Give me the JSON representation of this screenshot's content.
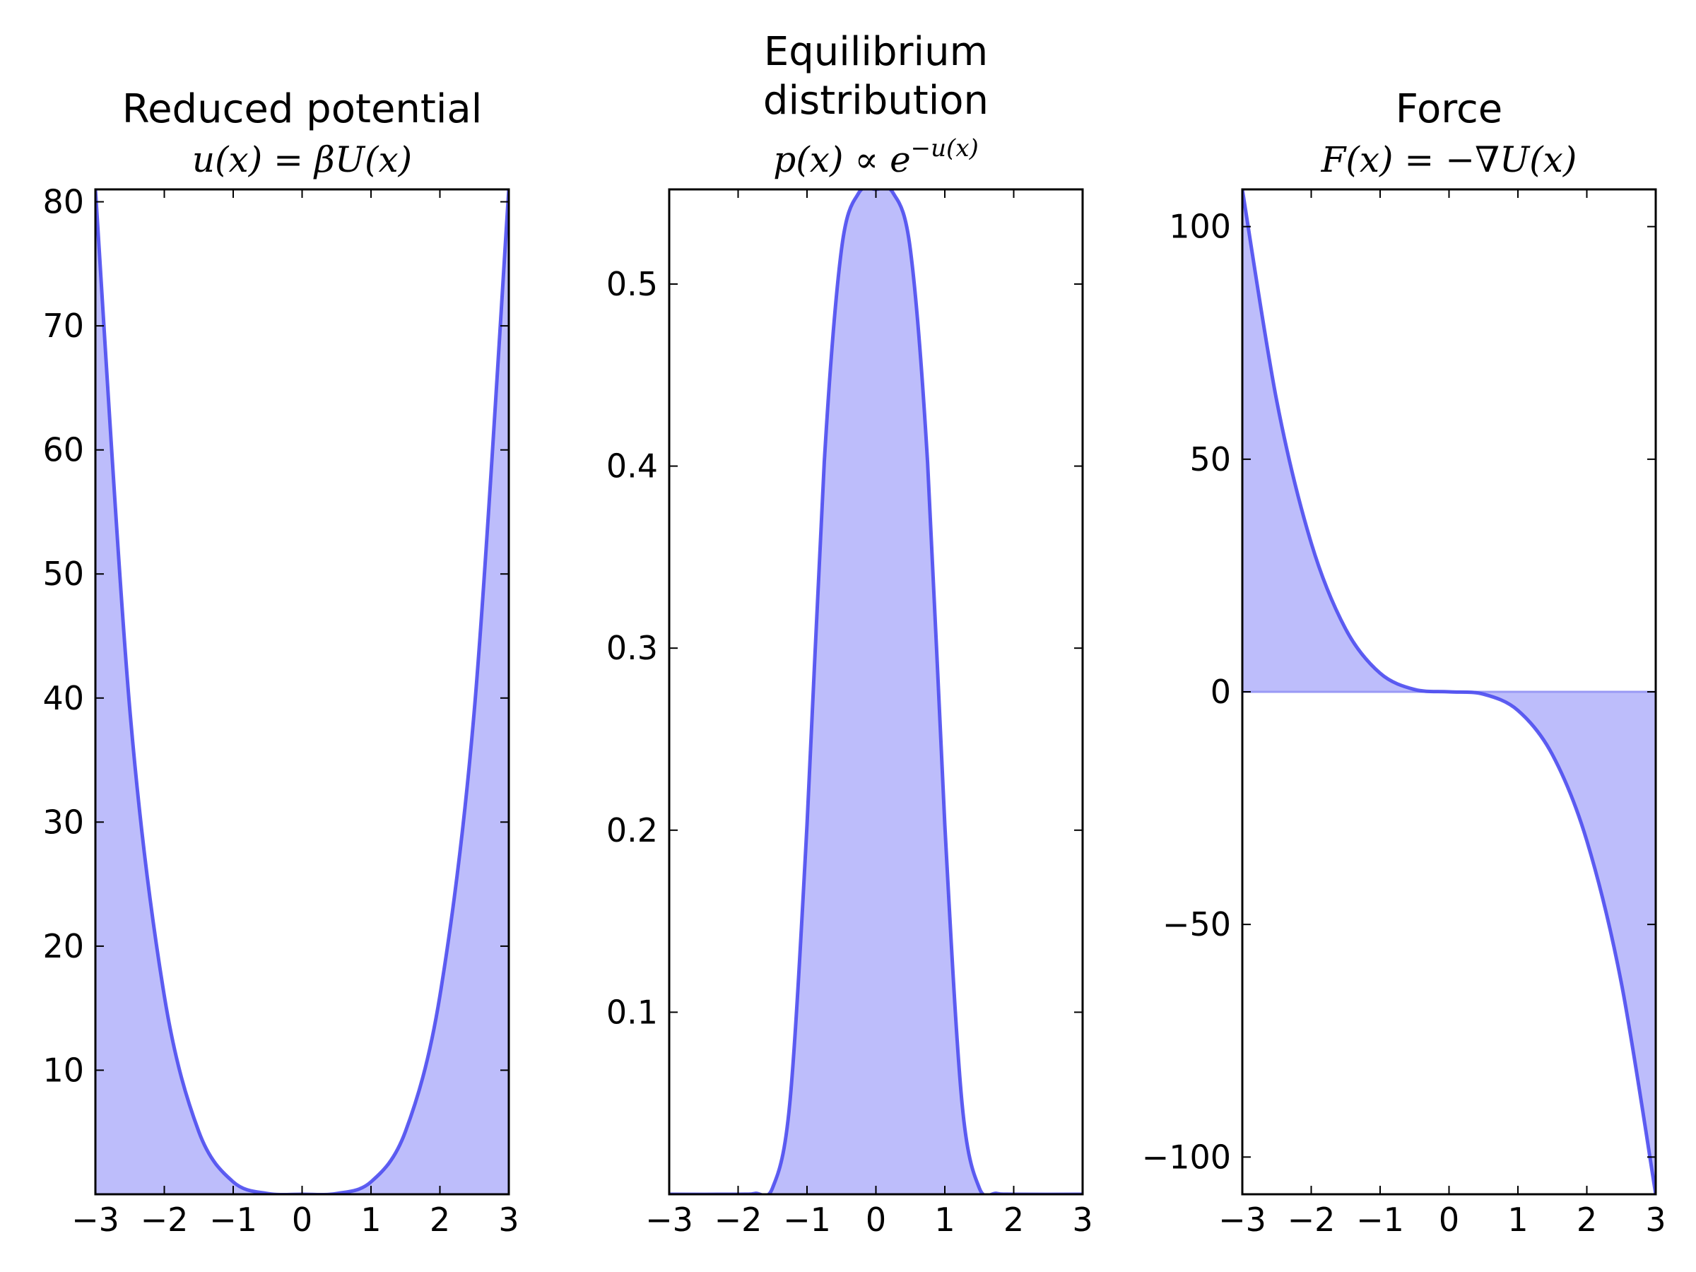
{
  "chart_data": [
    {
      "type": "area",
      "title": "Reduced potential",
      "subtitle": "u(x) = βU(x)",
      "xlabel": "",
      "ylabel": "",
      "xlim": [
        -3,
        3
      ],
      "ylim": [
        0,
        81
      ],
      "xticks": [
        -3,
        -2,
        -1,
        0,
        1,
        2,
        3
      ],
      "xtick_labels": [
        "−3",
        "−2",
        "−1",
        "0",
        "1",
        "2",
        "3"
      ],
      "yticks": [
        10,
        20,
        30,
        40,
        50,
        60,
        70,
        80
      ],
      "ytick_labels": [
        "10",
        "20",
        "30",
        "40",
        "50",
        "60",
        "70",
        "80"
      ],
      "x": [
        -3.0,
        -2.5,
        -2.0,
        -1.5,
        -1.0,
        -0.5,
        0.0,
        0.5,
        1.0,
        1.5,
        2.0,
        2.5,
        3.0
      ],
      "values": [
        81.0,
        39.06,
        16.0,
        5.06,
        1.0,
        0.06,
        0.0,
        0.06,
        1.0,
        5.06,
        16.0,
        39.06,
        81.0
      ],
      "fill_baseline": 0,
      "grid": false,
      "colors": {
        "line": "#4d4df0",
        "fill": "#bdbdfb"
      }
    },
    {
      "type": "area",
      "title": "Equilibrium distribution",
      "title_lines": [
        "Equilibrium",
        "distribution"
      ],
      "subtitle": "p(x) ∝ e−u(x)",
      "xlabel": "",
      "ylabel": "",
      "xlim": [
        -3,
        3
      ],
      "ylim": [
        0,
        0.552
      ],
      "xticks": [
        -3,
        -2,
        -1,
        0,
        1,
        2,
        3
      ],
      "xtick_labels": [
        "−3",
        "−2",
        "−1",
        "0",
        "1",
        "2",
        "3"
      ],
      "yticks": [
        0.1,
        0.2,
        0.3,
        0.4,
        0.5
      ],
      "ytick_labels": [
        "0.1",
        "0.2",
        "0.3",
        "0.4",
        "0.5"
      ],
      "x": [
        -3.0,
        -2.0,
        -1.75,
        -1.5,
        -1.25,
        -1.0,
        -0.75,
        -0.5,
        -0.25,
        0.0,
        0.25,
        0.5,
        0.75,
        1.0,
        1.25,
        1.5,
        1.75,
        2.0,
        3.0
      ],
      "values": [
        0.0,
        0.0,
        0.0005,
        0.0035,
        0.05,
        0.203,
        0.402,
        0.519,
        0.55,
        0.552,
        0.55,
        0.519,
        0.402,
        0.203,
        0.05,
        0.0035,
        0.0005,
        0.0,
        0.0
      ],
      "fill_baseline": 0,
      "grid": false,
      "colors": {
        "line": "#4d4df0",
        "fill": "#bdbdfb"
      }
    },
    {
      "type": "area",
      "title": "Force",
      "subtitle": "F(x) = −∇U(x)",
      "xlabel": "",
      "ylabel": "",
      "xlim": [
        -3,
        3
      ],
      "ylim": [
        -108,
        108
      ],
      "xticks": [
        -3,
        -2,
        -1,
        0,
        1,
        2,
        3
      ],
      "xtick_labels": [
        "−3",
        "−2",
        "−1",
        "0",
        "1",
        "2",
        "3"
      ],
      "yticks": [
        -100,
        -50,
        0,
        50,
        100
      ],
      "ytick_labels": [
        "−100",
        "−50",
        "0",
        "50",
        "100"
      ],
      "x": [
        -3.0,
        -2.5,
        -2.0,
        -1.5,
        -1.0,
        -0.5,
        0.0,
        0.5,
        1.0,
        1.5,
        2.0,
        2.5,
        3.0
      ],
      "values": [
        108.0,
        62.5,
        32.0,
        13.5,
        4.0,
        0.5,
        0.0,
        -0.5,
        -4.0,
        -13.5,
        -32.0,
        -62.5,
        -108.0
      ],
      "fill_baseline": 0,
      "grid": false,
      "colors": {
        "line": "#4d4df0",
        "fill": "#bdbdfb",
        "baseline": "#9999f5"
      }
    }
  ]
}
